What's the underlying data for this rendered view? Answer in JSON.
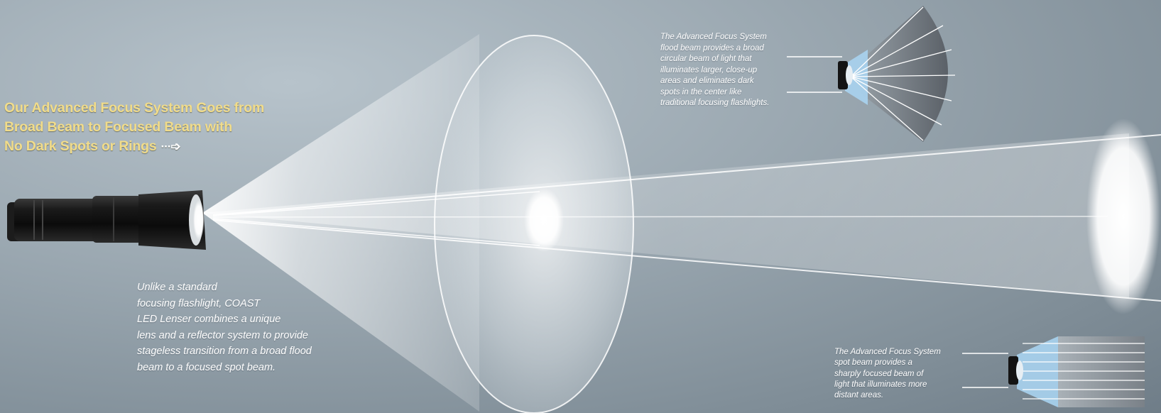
{
  "headline": {
    "lines": [
      "Our Advanced Focus System Goes from",
      "Broad Beam to Focused Beam with",
      "No Dark Spots or Rings"
    ],
    "arrow_icon": "dotted-arrow-right-icon"
  },
  "main_caption": {
    "lines": [
      "Unlike a standard",
      "focusing flashlight, COAST",
      "LED Lenser combines a unique",
      "lens and a reflector system to provide",
      "stageless transition from a broad flood",
      "beam to a focused spot beam."
    ]
  },
  "flood_caption": {
    "lines": [
      "The Advanced Focus System",
      "flood beam provides a broad",
      "circular beam of light that",
      "illuminates larger, close-up",
      "areas and eliminates dark",
      "spots in the center like",
      "traditional focusing flashlights."
    ]
  },
  "spot_caption": {
    "lines": [
      "The Advanced Focus System",
      "spot beam provides a",
      "sharply focused beam of",
      "light that illuminates more",
      "distant areas."
    ]
  },
  "colors": {
    "background": "#8e9aa3",
    "headline": "#f1dc8a",
    "caption": "#ffffff",
    "beam": "#ffffff",
    "flashlight_body": "#141414"
  },
  "illustrations": [
    "flashlight",
    "flood-beam-cone",
    "spot-beam-cone",
    "flood-beam-diagram",
    "spot-beam-diagram"
  ]
}
